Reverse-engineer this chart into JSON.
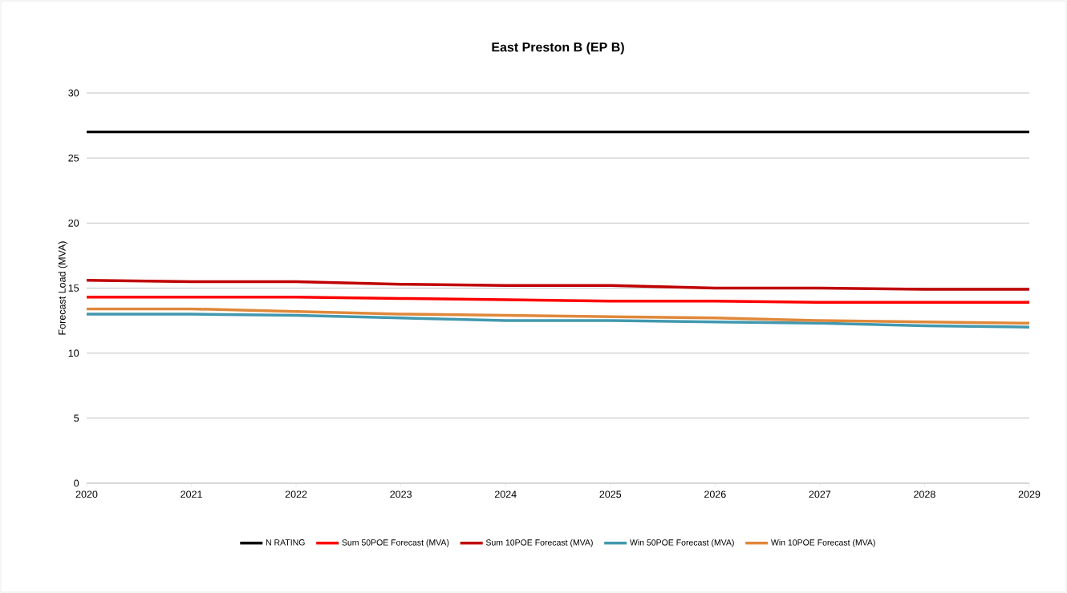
{
  "chart_data": {
    "type": "line",
    "title": "East Preston B (EP B)",
    "ylabel": "Forecast Load (MVA)",
    "categories": [
      "2020",
      "2021",
      "2022",
      "2023",
      "2024",
      "2025",
      "2026",
      "2027",
      "2028",
      "2029"
    ],
    "series": [
      {
        "name": "N RATING",
        "color": "#000000",
        "values": [
          27,
          27,
          27,
          27,
          27,
          27,
          27,
          27,
          27,
          27
        ]
      },
      {
        "name": "Sum 50POE Forecast (MVA)",
        "color": "#ff0000",
        "values": [
          14.3,
          14.3,
          14.3,
          14.2,
          14.1,
          14.0,
          14.0,
          13.9,
          13.9,
          13.9
        ]
      },
      {
        "name": "Sum 10POE Forecast (MVA)",
        "color": "#c00000",
        "values": [
          15.6,
          15.5,
          15.5,
          15.3,
          15.2,
          15.2,
          15.0,
          15.0,
          14.9,
          14.9
        ]
      },
      {
        "name": "Win 50POE Forecast (MVA)",
        "color": "#4198af",
        "values": [
          13.0,
          13.0,
          12.9,
          12.7,
          12.5,
          12.5,
          12.4,
          12.3,
          12.1,
          12.0
        ]
      },
      {
        "name": "Win 10POE Forecast (MVA)",
        "color": "#e0883a",
        "values": [
          13.4,
          13.4,
          13.2,
          13.0,
          12.9,
          12.8,
          12.7,
          12.5,
          12.4,
          12.3
        ]
      }
    ],
    "ylim": [
      0,
      30
    ],
    "yticks": [
      0,
      5,
      10,
      15,
      20,
      25,
      30
    ],
    "grid": "y",
    "legend": "bottom",
    "marker": "none",
    "line_style": "solid"
  }
}
